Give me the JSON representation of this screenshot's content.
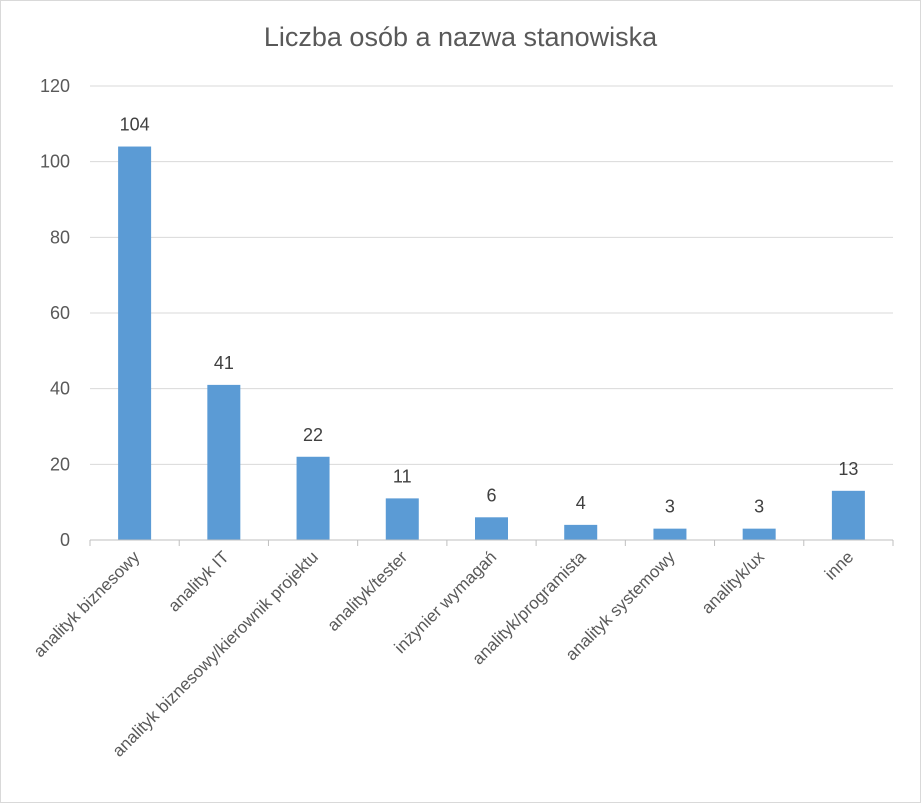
{
  "chart_data": {
    "type": "bar",
    "title": "Liczba osób a nazwa stanowiska",
    "xlabel": "",
    "ylabel": "",
    "categories": [
      "analityk biznesowy",
      "analityk IT",
      "analityk biznesowy/kierownik projektu",
      "analityk/tester",
      "inżynier wymagań",
      "analityk/programista",
      "analityk systemowy",
      "analityk/ux",
      "inne"
    ],
    "values": [
      104,
      41,
      22,
      11,
      6,
      4,
      3,
      3,
      13
    ],
    "data_labels": [
      "104",
      "41",
      "22",
      "11",
      "6",
      "4",
      "3",
      "3",
      "13"
    ],
    "ylim": [
      0,
      120
    ],
    "yticks": [
      "0",
      "20",
      "40",
      "60",
      "80",
      "100",
      "120"
    ],
    "grid": true,
    "legend": "none",
    "colors": {
      "bar": "#5b9bd5",
      "grid": "#d9d9d9",
      "axis": "#bfbfbf"
    }
  }
}
